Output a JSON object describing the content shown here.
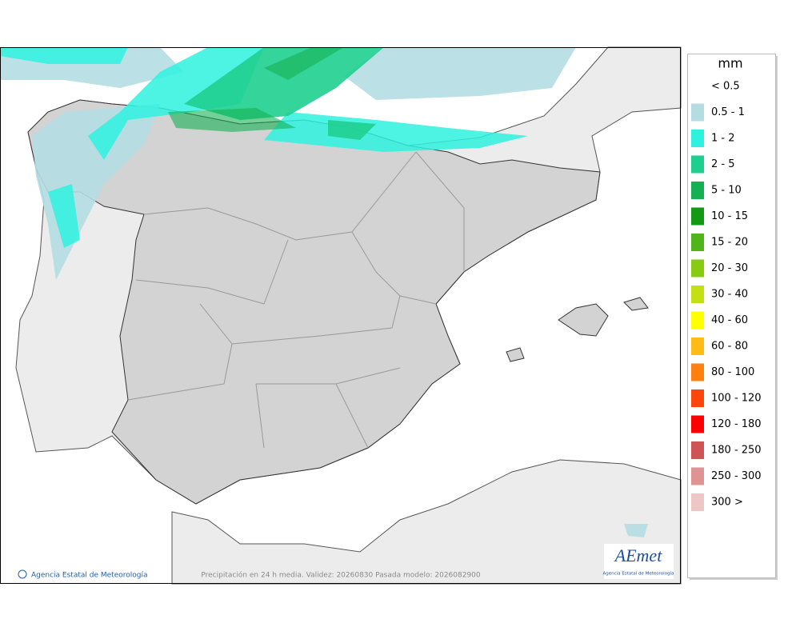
{
  "legend": {
    "title": "mm",
    "items": [
      {
        "label": "< 0.5"
      },
      {
        "label": "0.5 - 1",
        "color": "#b4dde3"
      },
      {
        "label": "1 - 2",
        "color": "#2ef2df"
      },
      {
        "label": "2 - 5",
        "color": "#1fcf8f"
      },
      {
        "label": "5 - 10",
        "color": "#16b054"
      },
      {
        "label": "10 - 15",
        "color": "#129a14"
      },
      {
        "label": "15 - 20",
        "color": "#4fb51a"
      },
      {
        "label": "20 - 30",
        "color": "#88cc12"
      },
      {
        "label": "30 - 40",
        "color": "#c3e014"
      },
      {
        "label": "40 - 60",
        "color": "#ffff00"
      },
      {
        "label": "60 - 80",
        "color": "#ffbc17"
      },
      {
        "label": "80 - 100",
        "color": "#ff7f0f"
      },
      {
        "label": "100 - 120",
        "color": "#ff460a"
      },
      {
        "label": "120 - 180",
        "color": "#ff0000"
      },
      {
        "label": "180 - 250",
        "color": "#cf5456"
      },
      {
        "label": "250 - 300",
        "color": "#df9393"
      },
      {
        "label": "300 >",
        "color": "#efc6c6"
      }
    ]
  },
  "footer": {
    "agency": "Agencia Estatal de Meteorología",
    "caption": "Precipitación en 24 h media. Validez: 20260830 Pasada modelo: 2026082900"
  },
  "logo": {
    "name": "AEmet",
    "subtitle": "Agencia Estatal de Meteorología"
  }
}
